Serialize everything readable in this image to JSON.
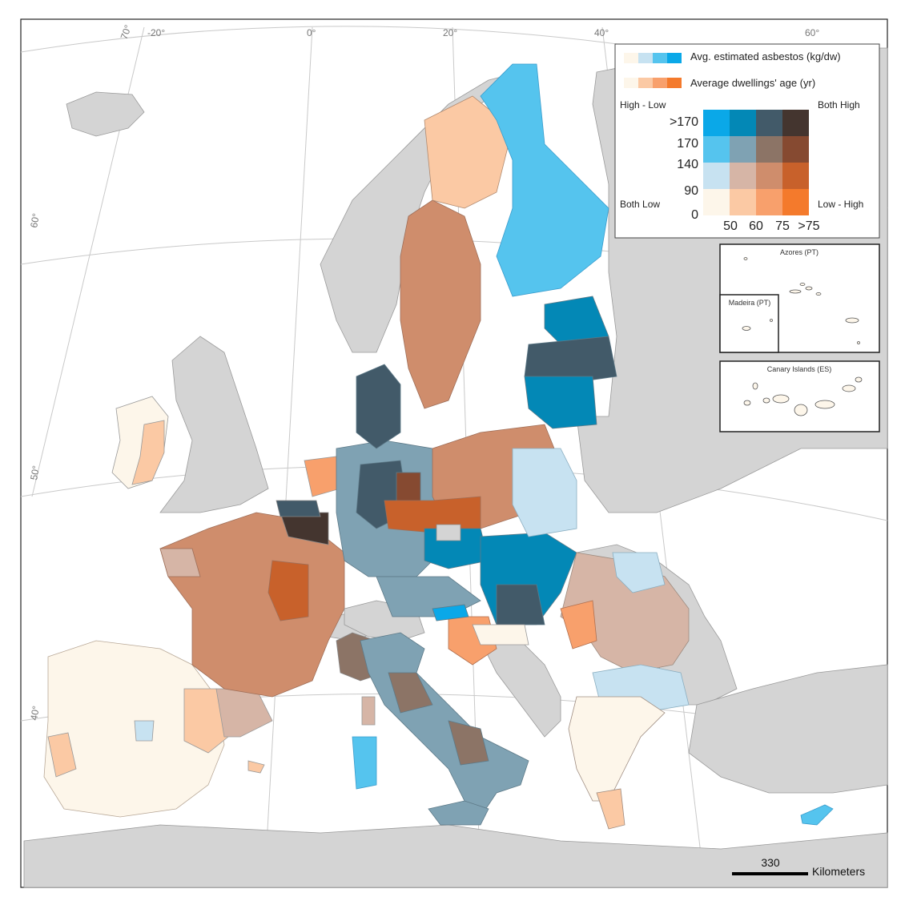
{
  "graticule": {
    "top_labels": [
      "70°",
      "-20°",
      "0°",
      "20°",
      "40°",
      "60°"
    ],
    "left_labels": [
      "60°",
      "50°",
      "40°"
    ]
  },
  "legend": {
    "asbestos_label": "Avg. estimated asbestos (kg/dw)",
    "age_label": "Average dwellings' age (yr)",
    "asbestos_colors": [
      "#fdf6ea",
      "#c7e2f1",
      "#55c4ee",
      "#0aa8e8"
    ],
    "age_colors": [
      "#fdf6ea",
      "#fbc9a4",
      "#f8a06c",
      "#f47a2c"
    ],
    "corner_high_low": "High - Low",
    "corner_both_high": "Both High",
    "corner_both_low": "Both Low",
    "corner_low_high": "Low - High",
    "y_ticks": [
      ">170",
      "170",
      "140",
      "90",
      "0"
    ],
    "x_ticks": [
      "50",
      "60",
      "75",
      ">75"
    ],
    "matrix": [
      [
        "#0aa8e8",
        "#0388b6",
        "#425a69",
        "#44352f"
      ],
      [
        "#55c4ee",
        "#7fa2b3",
        "#8c7466",
        "#864a31"
      ],
      [
        "#c7e2f1",
        "#d6b5a6",
        "#cf8d6c",
        "#c8612b"
      ],
      [
        "#fdf6ea",
        "#fbc9a4",
        "#f8a06c",
        "#f47a2c"
      ]
    ]
  },
  "insets": {
    "azores": "Azores (PT)",
    "madeira": "Madeira (PT)",
    "canary": "Canary Islands (ES)"
  },
  "scalebar": {
    "value": "330",
    "unit": "Kilometers"
  }
}
